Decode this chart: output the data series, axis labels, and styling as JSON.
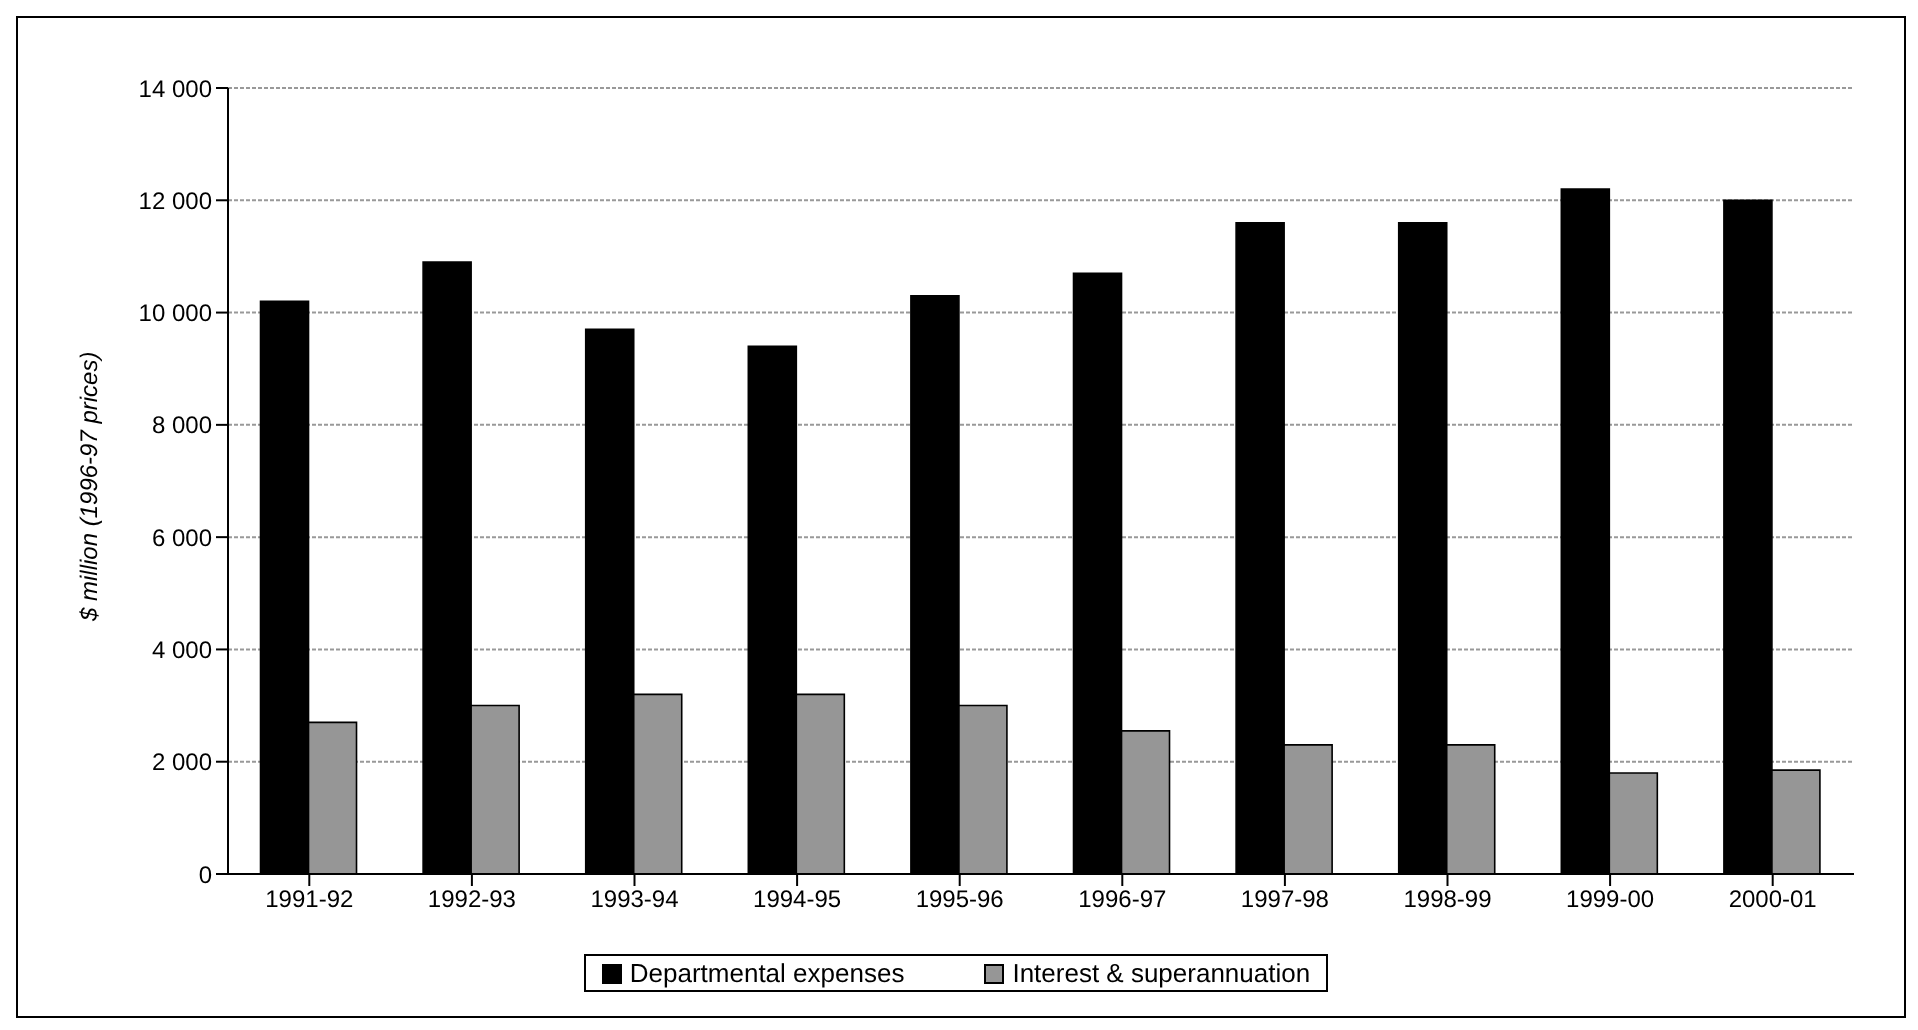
{
  "chart_data": {
    "type": "bar",
    "ylabel": "$ million (1996-97 prices)",
    "categories": [
      "1991-92",
      "1992-93",
      "1993-94",
      "1994-95",
      "1995-96",
      "1996-97",
      "1997-98",
      "1998-99",
      "1999-00",
      "2000-01"
    ],
    "series": [
      {
        "name": "Departmental expenses",
        "color": "#000000",
        "values": [
          10200,
          10900,
          9700,
          9400,
          10300,
          10700,
          11600,
          11600,
          12200,
          12000
        ]
      },
      {
        "name": "Interest & superannuation",
        "color": "#969696",
        "values": [
          2700,
          3000,
          3200,
          3200,
          3000,
          2550,
          2300,
          2300,
          1800,
          1850
        ]
      }
    ],
    "ylim": [
      0,
      14000
    ],
    "yticks": [
      0,
      {
        "value": 2000,
        "label": "2 000"
      },
      {
        "value": 4000,
        "label": "4 000"
      },
      {
        "value": 6000,
        "label": "6 000"
      },
      {
        "value": 8000,
        "label": "8 000"
      },
      {
        "value": 10000,
        "label": "10 000"
      },
      {
        "value": 12000,
        "label": "12 000"
      },
      {
        "value": 14000,
        "label": "14 000"
      }
    ],
    "grid": "y",
    "legend": "bottom"
  }
}
